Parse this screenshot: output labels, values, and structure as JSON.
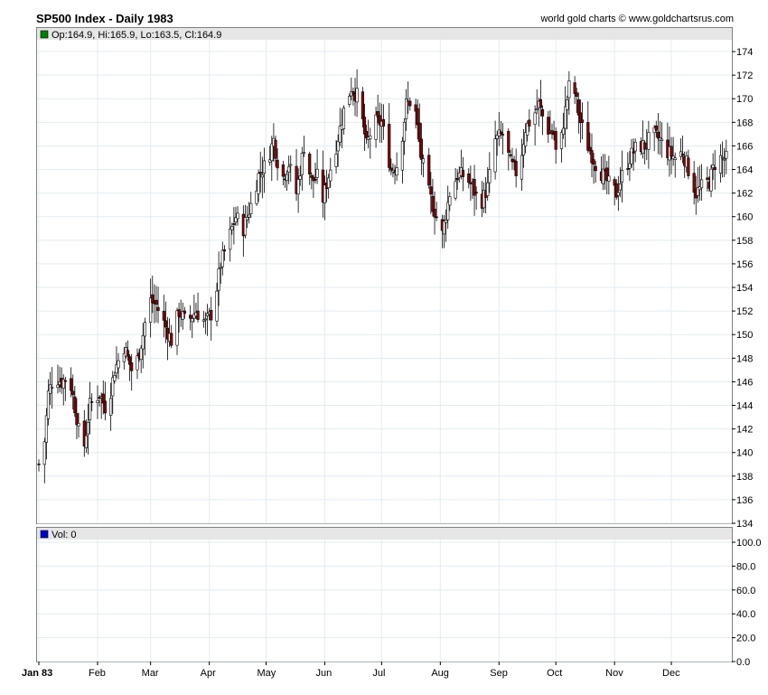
{
  "header": {
    "title": "SP500 Index - Daily 1983",
    "credit": "world gold charts © www.goldchartsrus.com"
  },
  "price_panel": {
    "legend_label": "Op:164.9, Hi:165.9, Lo:163.5, Cl:164.9",
    "legend_color": "#008000"
  },
  "volume_panel": {
    "legend_label": "Vol: 0",
    "legend_color": "#0000cc"
  },
  "colors": {
    "up": "#000000",
    "down": "#8b0000",
    "grid": "#e3ecf0",
    "band": "#e6e6e6"
  },
  "chart_data": [
    {
      "type": "candlestick",
      "title": "SP500 Index - Daily 1983",
      "ylim": [
        134,
        175
      ],
      "yticks": [
        "134",
        "136",
        "138",
        "140",
        "142",
        "144",
        "146",
        "148",
        "150",
        "152",
        "154",
        "156",
        "158",
        "160",
        "162",
        "164",
        "166",
        "168",
        "170",
        "172",
        "174"
      ],
      "x_labels": [
        {
          "label": "Jan 83",
          "day": 0,
          "bold": true
        },
        {
          "label": "Feb",
          "day": 31
        },
        {
          "label": "Mar",
          "day": 59
        },
        {
          "label": "Apr",
          "day": 90
        },
        {
          "label": "May",
          "day": 120
        },
        {
          "label": "Jun",
          "day": 151
        },
        {
          "label": "Jul",
          "day": 181
        },
        {
          "label": "Aug",
          "day": 212
        },
        {
          "label": "Sep",
          "day": 243
        },
        {
          "label": "Oct",
          "day": 273
        },
        {
          "label": "Nov",
          "day": 304
        },
        {
          "label": "Dec",
          "day": 334
        }
      ],
      "x_range_days": [
        0,
        365
      ],
      "close_anchors": [
        [
          2,
          139.0
        ],
        [
          5,
          145.0
        ],
        [
          8,
          146.5
        ],
        [
          12,
          146.0
        ],
        [
          16,
          146.5
        ],
        [
          20,
          143.0
        ],
        [
          23,
          139.5
        ],
        [
          27,
          144.0
        ],
        [
          32,
          145.0
        ],
        [
          36,
          143.5
        ],
        [
          40,
          147.0
        ],
        [
          45,
          149.0
        ],
        [
          50,
          146.5
        ],
        [
          55,
          150.0
        ],
        [
          58,
          153.0
        ],
        [
          62,
          152.5
        ],
        [
          66,
          151.0
        ],
        [
          70,
          149.5
        ],
        [
          74,
          152.0
        ],
        [
          78,
          151.0
        ],
        [
          83,
          152.0
        ],
        [
          88,
          151.0
        ],
        [
          92,
          152.0
        ],
        [
          96,
          156.0
        ],
        [
          100,
          158.0
        ],
        [
          104,
          160.0
        ],
        [
          108,
          159.0
        ],
        [
          112,
          161.0
        ],
        [
          116,
          163.5
        ],
        [
          120,
          164.5
        ],
        [
          124,
          166.5
        ],
        [
          128,
          163.0
        ],
        [
          132,
          164.5
        ],
        [
          136,
          162.0
        ],
        [
          140,
          166.0
        ],
        [
          144,
          163.0
        ],
        [
          148,
          163.5
        ],
        [
          150,
          161.5
        ],
        [
          153,
          163.5
        ],
        [
          157,
          166.0
        ],
        [
          161,
          169.0
        ],
        [
          165,
          171.0
        ],
        [
          169,
          170.0
        ],
        [
          173,
          166.0
        ],
        [
          177,
          168.0
        ],
        [
          181,
          168.0
        ],
        [
          186,
          164.0
        ],
        [
          190,
          164.5
        ],
        [
          194,
          169.5
        ],
        [
          198,
          170.0
        ],
        [
          202,
          165.0
        ],
        [
          206,
          162.0
        ],
        [
          210,
          160.0
        ],
        [
          213,
          158.5
        ],
        [
          217,
          162.0
        ],
        [
          221,
          163.5
        ],
        [
          225,
          163.5
        ],
        [
          229,
          162.5
        ],
        [
          233,
          161.0
        ],
        [
          237,
          162.5
        ],
        [
          241,
          166.5
        ],
        [
          245,
          167.0
        ],
        [
          249,
          164.5
        ],
        [
          253,
          163.5
        ],
        [
          257,
          167.5
        ],
        [
          261,
          168.5
        ],
        [
          264,
          169.5
        ],
        [
          268,
          167.5
        ],
        [
          272,
          167.0
        ],
        [
          274,
          164.0
        ],
        [
          277,
          168.0
        ],
        [
          280,
          171.0
        ],
        [
          283,
          170.5
        ],
        [
          286,
          168.0
        ],
        [
          290,
          166.0
        ],
        [
          294,
          164.5
        ],
        [
          298,
          163.5
        ],
        [
          302,
          162.5
        ],
        [
          305,
          162.0
        ],
        [
          308,
          163.5
        ],
        [
          312,
          165.0
        ],
        [
          316,
          166.0
        ],
        [
          320,
          166.0
        ],
        [
          324,
          167.0
        ],
        [
          328,
          166.5
        ],
        [
          332,
          165.5
        ],
        [
          336,
          165.0
        ],
        [
          340,
          165.5
        ],
        [
          344,
          163.5
        ],
        [
          347,
          162.0
        ],
        [
          350,
          162.5
        ],
        [
          354,
          163.0
        ],
        [
          358,
          165.0
        ],
        [
          362,
          164.9
        ]
      ]
    },
    {
      "type": "bar",
      "title": "Vol",
      "ylim": [
        0,
        100
      ],
      "yticks": [
        "0.0",
        "20.0",
        "40.0",
        "60.0",
        "80.0",
        "100.0"
      ],
      "values": []
    }
  ]
}
